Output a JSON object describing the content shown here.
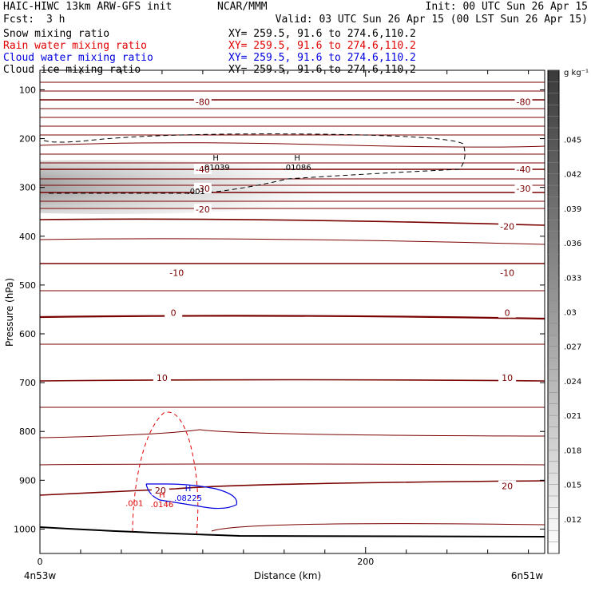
{
  "header": {
    "model": "HAIC-HIWC 13km ARW-GFS init",
    "org": "NCAR/MMM",
    "init": "Init: 00 UTC Sun 26 Apr 15",
    "fcst_label": "Fcst:",
    "fcst_value": "3 h",
    "valid": "Valid: 03 UTC Sun 26 Apr 15 (00 LST Sun 26 Apr 15)"
  },
  "fields": [
    {
      "name": "Snow mixing ratio",
      "xy": "XY= 259.5, 91.6 to 274.6,110.2",
      "color": "#000000"
    },
    {
      "name": "Rain water mixing ratio",
      "xy": "XY= 259.5, 91.6 to 274.6,110.2",
      "color": "#e00000"
    },
    {
      "name": "Cloud water mixing ratio",
      "xy": "XY= 259.5, 91.6 to 274.6,110.2",
      "color": "#0000e0"
    },
    {
      "name": "Cloud ice mixing ratio",
      "xy": "XY= 259.5, 91.6 to 274.6,110.2",
      "color": "#000000"
    }
  ],
  "chart_data": {
    "type": "heatmap",
    "xlabel": "Distance (km)",
    "ylabel": "Pressure (hPa)",
    "xlim": [
      0,
      310
    ],
    "ylim": [
      1050,
      60
    ],
    "x_ticks": [
      0,
      200
    ],
    "y_ticks": [
      100,
      200,
      300,
      400,
      500,
      600,
      700,
      800,
      900,
      1000
    ],
    "x_endpoints": {
      "left": "4n53w",
      "right": "6n51w"
    },
    "colorbar": {
      "unit": "g kg⁻¹",
      "ticks": [
        ".045",
        ".042",
        ".039",
        ".036",
        ".033",
        ".03",
        ".027",
        ".024",
        ".021",
        ".018",
        ".015",
        ".012"
      ],
      "tick_values": [
        0.045,
        0.042,
        0.039,
        0.036,
        0.033,
        0.03,
        0.027,
        0.024,
        0.021,
        0.018,
        0.015,
        0.012
      ],
      "range": [
        0.009,
        0.051
      ]
    },
    "temperature_labels": [
      {
        "text": "-80",
        "x": 100,
        "p": 125
      },
      {
        "text": "-80",
        "x": 297,
        "p": 125
      },
      {
        "text": "-40",
        "x": 100,
        "p": 263
      },
      {
        "text": "-40",
        "x": 297,
        "p": 263
      },
      {
        "text": "-30",
        "x": 100,
        "p": 302
      },
      {
        "text": "-30",
        "x": 297,
        "p": 302
      },
      {
        "text": "-20",
        "x": 100,
        "p": 345
      },
      {
        "text": "-20",
        "x": 287,
        "p": 380
      },
      {
        "text": "-10",
        "x": 84,
        "p": 475
      },
      {
        "text": "-10",
        "x": 287,
        "p": 475
      },
      {
        "text": "0",
        "x": 82,
        "p": 557
      },
      {
        "text": "0",
        "x": 287,
        "p": 557
      },
      {
        "text": "10",
        "x": 75,
        "p": 690
      },
      {
        "text": "10",
        "x": 287,
        "p": 690
      },
      {
        "text": "20",
        "x": 287,
        "p": 912
      },
      {
        "text": "20",
        "x": 74,
        "p": 921
      }
    ],
    "extrema": [
      {
        "mark": "H",
        "value": ".01039",
        "x": 108,
        "p": 255,
        "color": "#000000"
      },
      {
        "mark": "H",
        "value": ".01086",
        "x": 158,
        "p": 255,
        "color": "#000000"
      },
      {
        "mark": "H",
        "value": ".0146",
        "x": 75,
        "p": 945,
        "color": "#e00000"
      },
      {
        "mark": "H",
        "value": ".08225",
        "x": 91,
        "p": 932,
        "color": "#0000e0"
      }
    ],
    "contour_labels": [
      {
        "text": ".001",
        "x": 96,
        "p": 307,
        "color": "#000000"
      },
      {
        "text": ".001",
        "x": 58,
        "p": 946,
        "color": "#e00000"
      }
    ]
  }
}
